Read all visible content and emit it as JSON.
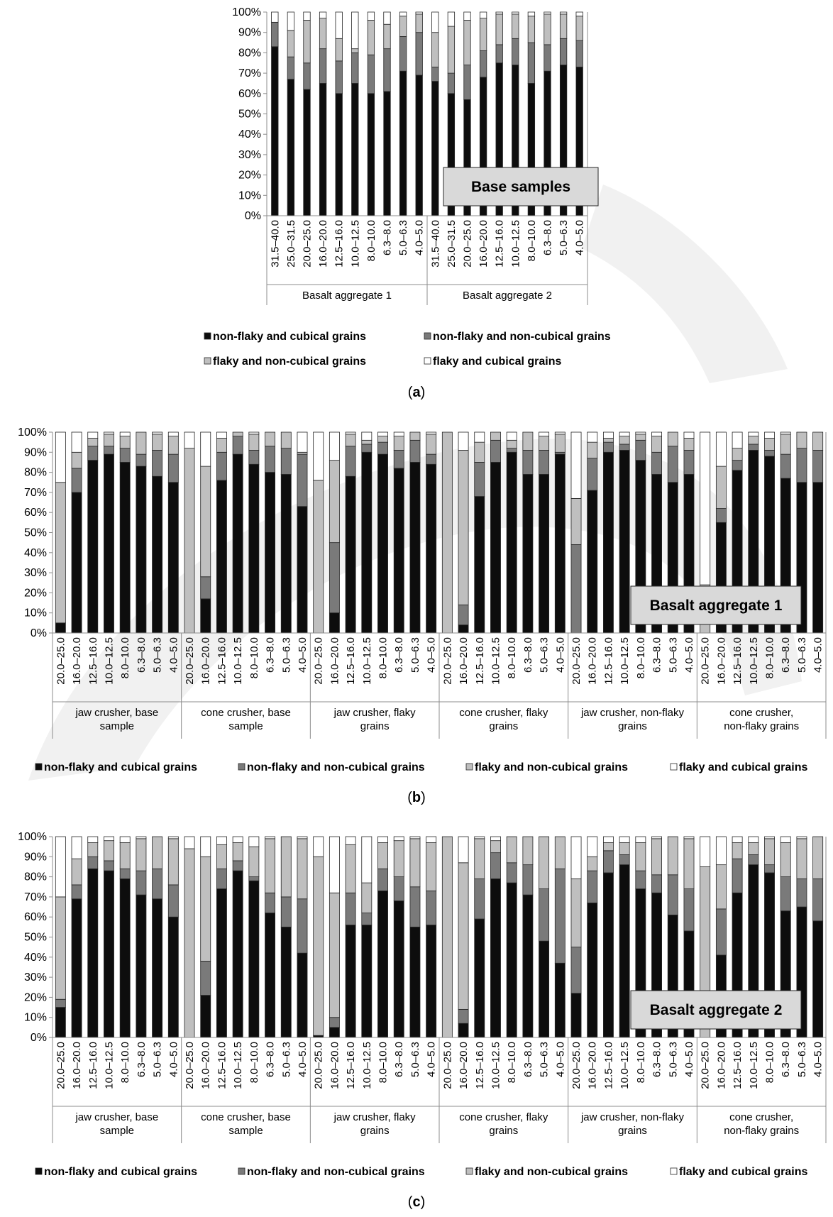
{
  "legend_labels": [
    "non-flaky and cubical grains",
    "non-flaky and non-cubical grains",
    "flaky and non-cubical grains",
    "flaky and cubical grains"
  ],
  "series_colors": [
    "#0d0d0d",
    "#7a7a7a",
    "#bfbfbf",
    "#ffffff"
  ],
  "y_ticks": [
    "0%",
    "10%",
    "20%",
    "30%",
    "40%",
    "50%",
    "60%",
    "70%",
    "80%",
    "90%",
    "100%"
  ],
  "chart_data": [
    {
      "type": "bar",
      "stacked": true,
      "panel_label": "(a)",
      "badge": "Base samples",
      "ylim": [
        0,
        100
      ],
      "grid": false,
      "groups": [
        {
          "label": "Basalt aggregate 1",
          "categories": [
            "31.5–40.0",
            "25.0–31.5",
            "20.0–25.0",
            "16.0–20.0",
            "12.5–16.0",
            "10.0–12.5",
            "8.0–10.0",
            "6.3–8.0",
            "5.0–6.3",
            "4.0–5.0"
          ]
        },
        {
          "label": "Basalt aggregate 2",
          "categories": [
            "31.5–40.0",
            "25.0–31.5",
            "20.0–25.0",
            "16.0–20.0",
            "12.5–16.0",
            "10.0–12.5",
            "8.0–10.0",
            "6.3–8.0",
            "5.0–6.3",
            "4.0–5.0"
          ]
        }
      ],
      "series": [
        {
          "name": "non-flaky and cubical grains",
          "values": [
            83,
            67,
            62,
            65,
            60,
            65,
            60,
            61,
            71,
            69,
            66,
            60,
            57,
            68,
            75,
            74,
            65,
            71,
            74,
            73
          ]
        },
        {
          "name": "non-flaky and non-cubical grains",
          "values": [
            12,
            11,
            13,
            17,
            16,
            15,
            19,
            21,
            17,
            21,
            7,
            10,
            17,
            13,
            9,
            13,
            20,
            13,
            13,
            13
          ]
        },
        {
          "name": "flaky and non-cubical grains",
          "values": [
            0,
            13,
            21,
            15,
            11,
            2,
            17,
            12,
            10,
            9,
            17,
            23,
            22,
            16,
            15,
            12,
            13,
            15,
            12,
            12
          ]
        },
        {
          "name": "flaky and cubical grains",
          "values": [
            5,
            9,
            4,
            3,
            13,
            18,
            4,
            6,
            2,
            1,
            10,
            7,
            4,
            3,
            1,
            1,
            2,
            1,
            1,
            2
          ]
        }
      ]
    },
    {
      "type": "bar",
      "stacked": true,
      "panel_label": "(b)",
      "badge": "Basalt aggregate 1",
      "ylim": [
        0,
        100
      ],
      "grid": false,
      "groups": [
        {
          "label": "jaw crusher, base sample",
          "categories": [
            "20.0–25.0",
            "16.0–20.0",
            "12.5–16.0",
            "10.0–12.5",
            "8.0–10.0",
            "6.3–8.0",
            "5.0–6.3",
            "4.0–5.0"
          ]
        },
        {
          "label": "cone crusher, base sample",
          "categories": [
            "20.0–25.0",
            "16.0–20.0",
            "12.5–16.0",
            "10.0–12.5",
            "8.0–10.0",
            "6.3–8.0",
            "5.0–6.3",
            "4.0–5.0"
          ]
        },
        {
          "label": "jaw crusher, flaky grains",
          "categories": [
            "20.0–25.0",
            "16.0–20.0",
            "12.5–16.0",
            "10.0–12.5",
            "8.0–10.0",
            "6.3–8.0",
            "5.0–6.3",
            "4.0–5.0"
          ]
        },
        {
          "label": "cone crusher, flaky grains",
          "categories": [
            "20.0–25.0",
            "16.0–20.0",
            "12.5–16.0",
            "10.0–12.5",
            "8.0–10.0",
            "6.3–8.0",
            "5.0–6.3",
            "4.0–5.0"
          ]
        },
        {
          "label": "jaw crusher, non-flaky grains",
          "categories": [
            "20.0–25.0",
            "16.0–20.0",
            "12.5–16.0",
            "10.0–12.5",
            "8.0–10.0",
            "6.3–8.0",
            "5.0–6.3",
            "4.0–5.0"
          ]
        },
        {
          "label": "cone crusher, non-flaky grains",
          "categories": [
            "20.0–25.0",
            "16.0–20.0",
            "12.5–16.0",
            "10.0–12.5",
            "8.0–10.0",
            "6.3–8.0",
            "5.0–6.3",
            "4.0–5.0"
          ]
        }
      ],
      "series": [
        {
          "name": "non-flaky and cubical grains",
          "values": [
            5,
            70,
            86,
            89,
            85,
            83,
            78,
            75,
            0,
            17,
            76,
            89,
            84,
            80,
            79,
            63,
            0,
            10,
            78,
            90,
            89,
            82,
            85,
            84,
            0,
            4,
            68,
            85,
            90,
            79,
            79,
            89,
            0,
            71,
            90,
            91,
            86,
            79,
            75,
            79,
            0,
            55,
            81,
            91,
            88,
            77,
            75,
            75
          ]
        },
        {
          "name": "non-flaky and non-cubical grains",
          "values": [
            0,
            12,
            7,
            4,
            7,
            6,
            13,
            14,
            0,
            11,
            14,
            9,
            7,
            13,
            13,
            26,
            0,
            35,
            15,
            4,
            6,
            9,
            11,
            5,
            0,
            10,
            17,
            11,
            2,
            12,
            12,
            1,
            44,
            16,
            5,
            3,
            10,
            11,
            18,
            12,
            0,
            7,
            5,
            3,
            3,
            12,
            17,
            16
          ]
        },
        {
          "name": "flaky and non-cubical grains",
          "values": [
            70,
            8,
            4,
            6,
            6,
            11,
            8,
            9,
            92,
            55,
            7,
            2,
            8,
            7,
            8,
            1,
            76,
            41,
            6,
            2,
            3,
            7,
            4,
            10,
            100,
            77,
            10,
            4,
            4,
            9,
            7,
            9,
            23,
            8,
            2,
            4,
            3,
            8,
            7,
            6,
            24,
            21,
            6,
            4,
            6,
            10,
            8,
            9
          ]
        },
        {
          "name": "flaky and cubical grains",
          "values": [
            25,
            10,
            3,
            1,
            2,
            0,
            1,
            2,
            8,
            17,
            3,
            0,
            1,
            0,
            0,
            10,
            24,
            14,
            1,
            4,
            2,
            2,
            0,
            1,
            0,
            9,
            5,
            0,
            4,
            0,
            2,
            1,
            33,
            5,
            3,
            2,
            1,
            2,
            0,
            3,
            76,
            17,
            8,
            2,
            3,
            1,
            0,
            0
          ]
        }
      ]
    },
    {
      "type": "bar",
      "stacked": true,
      "panel_label": "(c)",
      "badge": "Basalt aggregate 2",
      "ylim": [
        0,
        100
      ],
      "grid": false,
      "groups": [
        {
          "label": "jaw crusher, base sample",
          "categories": [
            "20.0–25.0",
            "16.0–20.0",
            "12.5–16.0",
            "10.0–12.5",
            "8.0–10.0",
            "6.3–8.0",
            "5.0–6.3",
            "4.0–5.0"
          ]
        },
        {
          "label": "cone crusher, base sample",
          "categories": [
            "20.0–25.0",
            "16.0–20.0",
            "12.5–16.0",
            "10.0–12.5",
            "8.0–10.0",
            "6.3–8.0",
            "5.0–6.3",
            "4.0–5.0"
          ]
        },
        {
          "label": "jaw crusher, flaky grains",
          "categories": [
            "20.0–25.0",
            "16.0–20.0",
            "12.5–16.0",
            "10.0–12.5",
            "8.0–10.0",
            "6.3–8.0",
            "5.0–6.3",
            "4.0–5.0"
          ]
        },
        {
          "label": "cone crusher, flaky grains",
          "categories": [
            "20.0–25.0",
            "16.0–20.0",
            "12.5–16.0",
            "10.0–12.5",
            "8.0–10.0",
            "6.3–8.0",
            "5.0–6.3",
            "4.0–5.0"
          ]
        },
        {
          "label": "jaw crusher, non-flaky grains",
          "categories": [
            "20.0–25.0",
            "16.0–20.0",
            "12.5–16.0",
            "10.0–12.5",
            "8.0–10.0",
            "6.3–8.0",
            "5.0–6.3",
            "4.0–5.0"
          ]
        },
        {
          "label": "cone crusher, non-flaky grains",
          "categories": [
            "20.0–25.0",
            "16.0–20.0",
            "12.5–16.0",
            "10.0–12.5",
            "8.0–10.0",
            "6.3–8.0",
            "5.0–6.3",
            "4.0–5.0"
          ]
        }
      ],
      "series": [
        {
          "name": "non-flaky and cubical grains",
          "values": [
            15,
            69,
            84,
            83,
            79,
            71,
            69,
            60,
            0,
            21,
            74,
            83,
            78,
            62,
            55,
            42,
            1,
            5,
            56,
            56,
            73,
            68,
            55,
            56,
            0,
            7,
            59,
            79,
            77,
            71,
            48,
            37,
            22,
            67,
            82,
            86,
            74,
            72,
            61,
            53,
            0,
            41,
            72,
            86,
            82,
            63,
            65,
            58
          ]
        },
        {
          "name": "non-flaky and non-cubical grains",
          "values": [
            4,
            7,
            6,
            5,
            5,
            12,
            15,
            16,
            0,
            17,
            10,
            5,
            2,
            10,
            15,
            27,
            0,
            5,
            16,
            6,
            11,
            12,
            20,
            17,
            0,
            7,
            20,
            13,
            10,
            15,
            26,
            47,
            23,
            16,
            11,
            5,
            9,
            9,
            20,
            21,
            0,
            23,
            17,
            5,
            4,
            17,
            14,
            21
          ]
        },
        {
          "name": "flaky and non-cubical grains",
          "values": [
            51,
            13,
            7,
            10,
            13,
            16,
            16,
            23,
            94,
            52,
            12,
            9,
            15,
            27,
            30,
            30,
            89,
            62,
            24,
            15,
            13,
            18,
            24,
            24,
            100,
            73,
            20,
            6,
            13,
            14,
            26,
            16,
            34,
            7,
            4,
            6,
            14,
            18,
            19,
            25,
            85,
            22,
            8,
            6,
            13,
            17,
            20,
            21
          ]
        },
        {
          "name": "flaky and cubical grains",
          "values": [
            30,
            11,
            3,
            2,
            3,
            1,
            0,
            1,
            6,
            10,
            4,
            3,
            5,
            1,
            0,
            1,
            10,
            28,
            4,
            23,
            3,
            2,
            1,
            3,
            0,
            13,
            1,
            2,
            0,
            0,
            0,
            0,
            21,
            10,
            3,
            3,
            3,
            1,
            0,
            1,
            15,
            14,
            3,
            3,
            1,
            3,
            1,
            0
          ]
        }
      ]
    }
  ]
}
